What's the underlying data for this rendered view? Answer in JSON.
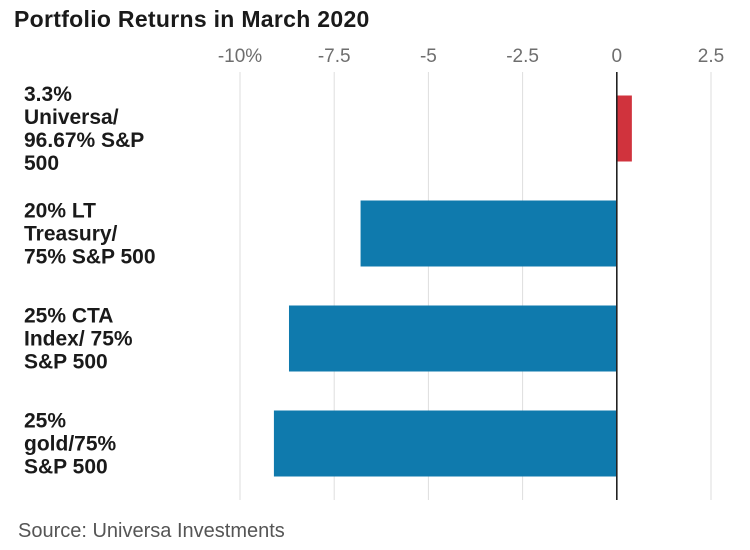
{
  "chart_data": {
    "type": "bar",
    "orientation": "horizontal",
    "title": "Portfolio Returns in March 2020",
    "source": "Source: Universa Investments",
    "categories": [
      [
        "3.3%",
        "Universa/",
        "96.67% S&P",
        "500"
      ],
      [
        "20% LT",
        "Treasury/",
        "75% S&P 500"
      ],
      [
        "25% CTA",
        "Index/ 75%",
        "S&P 500"
      ],
      [
        "25%",
        "gold/75%",
        "S&P 500"
      ]
    ],
    "values": [
      0.4,
      -6.8,
      -8.7,
      -9.1
    ],
    "xlim": [
      -10,
      2.5
    ],
    "xticks": [
      -10,
      -7.5,
      -5,
      -2.5,
      0,
      2.5
    ],
    "xtick_labels": [
      "-10%",
      "-7.5",
      "-5",
      "-2.5",
      "0",
      "2.5"
    ],
    "grid": true,
    "colors": {
      "positive": "#d0333d",
      "negative": "#0f7aad"
    }
  }
}
